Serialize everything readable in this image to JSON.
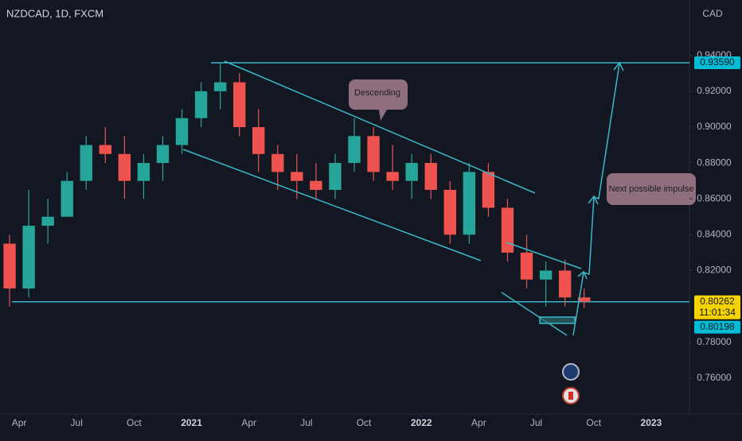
{
  "chart_data": {
    "type": "candlestick",
    "title": "NZDCAD, 1D, FXCM",
    "currency": "CAD",
    "x": [
      "2020-03",
      "2020-04",
      "2020-05",
      "2020-06",
      "2020-07",
      "2020-08",
      "2020-09",
      "2020-10",
      "2020-11",
      "2020-12",
      "2021-01",
      "2021-02",
      "2021-03",
      "2021-04",
      "2021-05",
      "2021-06",
      "2021-07",
      "2021-08",
      "2021-09",
      "2021-10",
      "2021-11",
      "2021-12",
      "2022-01",
      "2022-02",
      "2022-03",
      "2022-04",
      "2022-05",
      "2022-06",
      "2022-07",
      "2022-08",
      "2022-09"
    ],
    "open": [
      0.835,
      0.81,
      0.845,
      0.85,
      0.87,
      0.89,
      0.885,
      0.87,
      0.88,
      0.89,
      0.905,
      0.92,
      0.925,
      0.9,
      0.885,
      0.875,
      0.87,
      0.865,
      0.88,
      0.895,
      0.875,
      0.87,
      0.88,
      0.865,
      0.84,
      0.875,
      0.855,
      0.83,
      0.815,
      0.82,
      0.805
    ],
    "high": [
      0.84,
      0.865,
      0.86,
      0.875,
      0.895,
      0.9,
      0.895,
      0.885,
      0.895,
      0.91,
      0.925,
      0.936,
      0.93,
      0.91,
      0.89,
      0.885,
      0.88,
      0.885,
      0.905,
      0.9,
      0.89,
      0.885,
      0.885,
      0.87,
      0.88,
      0.88,
      0.86,
      0.84,
      0.825,
      0.826,
      0.81
    ],
    "low": [
      0.8,
      0.805,
      0.835,
      0.85,
      0.865,
      0.88,
      0.86,
      0.86,
      0.87,
      0.885,
      0.9,
      0.91,
      0.895,
      0.875,
      0.865,
      0.86,
      0.86,
      0.86,
      0.875,
      0.87,
      0.865,
      0.86,
      0.86,
      0.835,
      0.835,
      0.85,
      0.825,
      0.81,
      0.8,
      0.8,
      0.799
    ],
    "close": [
      0.81,
      0.845,
      0.85,
      0.87,
      0.89,
      0.885,
      0.87,
      0.88,
      0.89,
      0.905,
      0.92,
      0.925,
      0.9,
      0.885,
      0.875,
      0.87,
      0.865,
      0.88,
      0.895,
      0.875,
      0.87,
      0.88,
      0.865,
      0.84,
      0.875,
      0.855,
      0.83,
      0.815,
      0.82,
      0.805,
      0.80262
    ],
    "up_color": "#26a69a",
    "down_color": "#ef5350",
    "xlim": [
      "2020-03",
      "2023-03"
    ],
    "xticks": [
      {
        "value": "2020-04",
        "label": "Apr"
      },
      {
        "value": "2020-07",
        "label": "Jul"
      },
      {
        "value": "2020-10",
        "label": "Oct"
      },
      {
        "value": "2021-01",
        "label": "2021"
      },
      {
        "value": "2021-04",
        "label": "Apr"
      },
      {
        "value": "2021-07",
        "label": "Jul"
      },
      {
        "value": "2021-10",
        "label": "Oct"
      },
      {
        "value": "2022-01",
        "label": "2022"
      },
      {
        "value": "2022-04",
        "label": "Apr"
      },
      {
        "value": "2022-07",
        "label": "Jul"
      },
      {
        "value": "2022-10",
        "label": "Oct"
      },
      {
        "value": "2023-01",
        "label": "2023"
      }
    ],
    "ylim": [
      0.74,
      0.97
    ],
    "yticks": [
      {
        "value": 0.94,
        "label": "0.94000"
      },
      {
        "value": 0.92,
        "label": "0.92000"
      },
      {
        "value": 0.9,
        "label": "0.90000"
      },
      {
        "value": 0.88,
        "label": "0.88000"
      },
      {
        "value": 0.86,
        "label": "0.86000"
      },
      {
        "value": 0.84,
        "label": "0.84000"
      },
      {
        "value": 0.82,
        "label": "0.82000"
      },
      {
        "value": 0.78,
        "label": "0.78000"
      },
      {
        "value": 0.76,
        "label": "0.76000"
      }
    ],
    "grid": false,
    "last_price": 0.80262,
    "countdown": "11:01:34",
    "levels": [
      {
        "value": 0.9359,
        "label": "0.93590"
      },
      {
        "value": 0.80198,
        "label": "0.80198"
      }
    ],
    "annotations": [
      "Descending",
      "Next possible impulse"
    ]
  }
}
